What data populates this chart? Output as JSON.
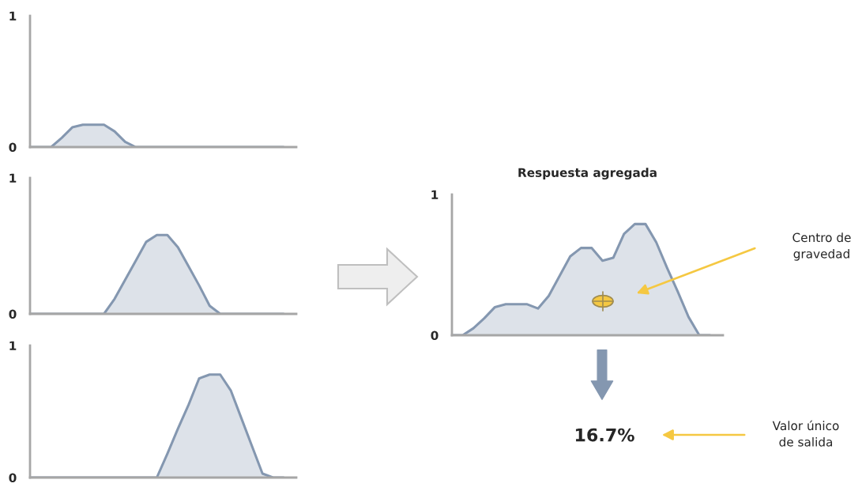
{
  "chart_data": [
    {
      "type": "area",
      "categories": [
        null,
        null,
        null,
        null,
        null,
        null,
        null,
        null,
        null,
        null,
        null,
        null,
        null,
        null,
        null,
        null,
        null,
        null,
        null,
        null,
        null,
        null,
        null,
        null,
        null
      ],
      "ylim": [
        0,
        1
      ],
      "yticks": [
        0,
        1
      ],
      "tick_labels": "y",
      "series": [
        {
          "color": "#8497b0",
          "values": [
            0,
            0,
            0,
            0.07,
            0.15,
            0.17,
            0.17,
            0.17,
            0.12,
            0.04,
            0,
            0,
            0,
            0,
            0,
            0,
            0,
            0,
            0,
            0,
            0,
            0,
            0,
            0,
            0
          ]
        }
      ]
    },
    {
      "type": "area",
      "categories": [
        null,
        null,
        null,
        null,
        null,
        null,
        null,
        null,
        null,
        null,
        null,
        null,
        null,
        null,
        null,
        null,
        null,
        null,
        null,
        null,
        null,
        null,
        null,
        null,
        null
      ],
      "ylim": [
        0,
        1
      ],
      "yticks": [
        0,
        1
      ],
      "tick_labels": "y",
      "series": [
        {
          "color": "#8497b0",
          "values": [
            0,
            0,
            0,
            0,
            0,
            0,
            0,
            0,
            0.11,
            0.25,
            0.39,
            0.53,
            0.58,
            0.58,
            0.49,
            0.35,
            0.21,
            0.06,
            0,
            0,
            0,
            0,
            0,
            0,
            0
          ]
        }
      ]
    },
    {
      "type": "area",
      "categories": [
        null,
        null,
        null,
        null,
        null,
        null,
        null,
        null,
        null,
        null,
        null,
        null,
        null,
        null,
        null,
        null,
        null,
        null,
        null,
        null,
        null,
        null,
        null,
        null,
        null
      ],
      "ylim": [
        0,
        1
      ],
      "yticks": [
        0,
        1
      ],
      "tick_labels": "y",
      "series": [
        {
          "color": "#8497b0",
          "values": [
            0,
            0,
            0,
            0,
            0,
            0,
            0,
            0,
            0,
            0,
            0,
            0,
            0,
            0.18,
            0.37,
            0.55,
            0.75,
            0.78,
            0.78,
            0.66,
            0.45,
            0.24,
            0.03,
            0,
            0
          ]
        }
      ]
    },
    {
      "type": "area",
      "title": "Respuesta agregada",
      "categories": [
        null,
        null,
        null,
        null,
        null,
        null,
        null,
        null,
        null,
        null,
        null,
        null,
        null,
        null,
        null,
        null,
        null,
        null,
        null,
        null,
        null,
        null,
        null,
        null,
        null
      ],
      "ylim": [
        0,
        1
      ],
      "yticks": [
        0,
        1
      ],
      "tick_labels": "y",
      "series": [
        {
          "color": "#8497b0",
          "values": [
            0,
            0,
            0.05,
            0.12,
            0.2,
            0.22,
            0.22,
            0.22,
            0.19,
            0.28,
            0.42,
            0.56,
            0.62,
            0.62,
            0.53,
            0.55,
            0.72,
            0.79,
            0.79,
            0.66,
            0.48,
            0.31,
            0.13,
            0,
            0
          ]
        }
      ],
      "annotations": [
        "Centro de\ngravedad",
        "16.7%",
        "Valor único\nde salida"
      ]
    }
  ]
}
